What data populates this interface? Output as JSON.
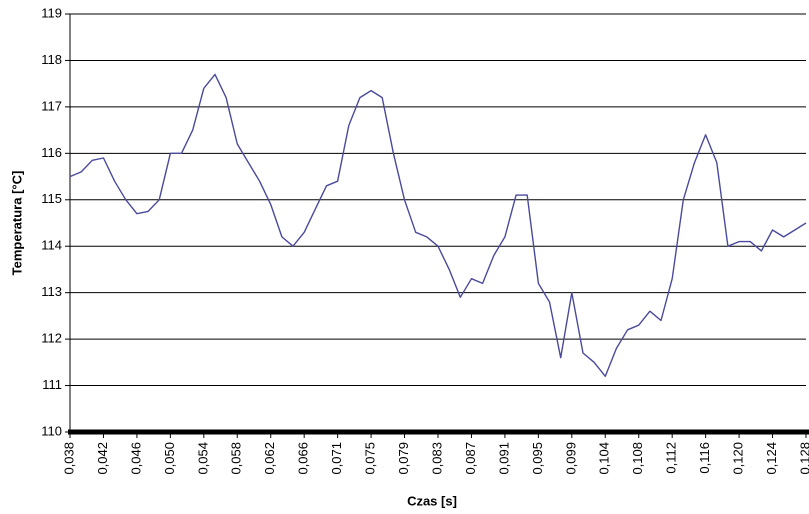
{
  "chart_data": {
    "type": "line",
    "x_label": "Czas [s]",
    "y_label": "Temperatura [°C]",
    "categories": [
      "0,038",
      null,
      null,
      "0,042",
      null,
      null,
      "0,046",
      null,
      null,
      "0,050",
      null,
      null,
      "0,054",
      null,
      null,
      "0,058",
      null,
      null,
      "0,062",
      null,
      null,
      "0,066",
      null,
      null,
      "0,071",
      null,
      null,
      "0,075",
      null,
      null,
      "0,079",
      null,
      null,
      "0,083",
      null,
      null,
      "0,087",
      null,
      null,
      "0,091",
      null,
      null,
      "0,095",
      null,
      null,
      "0,099",
      null,
      null,
      "0,104",
      null,
      null,
      "0,108",
      null,
      null,
      "0,112",
      null,
      null,
      "0,116",
      null,
      null,
      "0,120",
      null,
      null,
      "0,124",
      null,
      null,
      "0,128"
    ],
    "values": [
      115.5,
      115.6,
      115.85,
      115.9,
      115.4,
      115.0,
      114.7,
      114.75,
      115.0,
      116.0,
      116.0,
      116.5,
      117.4,
      117.7,
      117.2,
      116.2,
      115.8,
      115.4,
      114.9,
      114.2,
      114.0,
      114.3,
      114.8,
      115.3,
      115.4,
      116.6,
      117.2,
      117.35,
      117.2,
      116.0,
      115.0,
      114.3,
      114.2,
      114.0,
      113.5,
      112.9,
      113.3,
      113.2,
      113.8,
      114.2,
      115.1,
      115.1,
      113.2,
      112.8,
      111.6,
      113.0,
      111.7,
      111.5,
      111.2,
      111.8,
      112.2,
      112.3,
      112.6,
      112.4,
      113.3,
      115.0,
      115.8,
      116.4,
      115.8,
      114.0,
      114.1,
      114.1,
      113.9,
      114.35,
      114.2,
      114.35,
      114.5
    ],
    "color": "#4a4a9c",
    "ylim": [
      110,
      119
    ],
    "yticks": [
      110,
      111,
      112,
      113,
      114,
      115,
      116,
      117,
      118,
      119
    ],
    "grid": true
  }
}
